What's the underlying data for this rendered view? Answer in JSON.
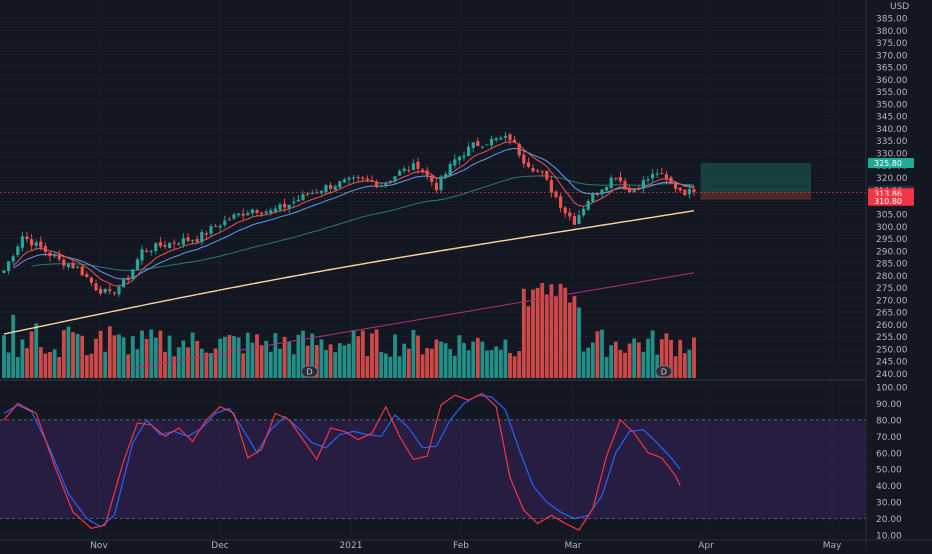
{
  "colors": {
    "background": "#131722",
    "grid": "#2a2e39",
    "up": "#26a69a",
    "down": "#ef5350",
    "ema_fast": "#ef5350",
    "ema_mid": "#5b9cf6",
    "sma_100": "#2a7a73",
    "sma_200": "#ffd59e",
    "sma_purple": "#b0307a",
    "stoch_k": "#2962ff",
    "stoch_d": "#f23645",
    "stoch_band": "#2a1f45",
    "long_profit": "#1a4a48",
    "long_loss": "#5a2a2e",
    "badge_green": "#22ab94",
    "badge_red": "#f23645"
  },
  "currency": "USD",
  "current_price_label": "313.86",
  "countdown_label": "04:45:05",
  "target_label": "325.80",
  "stop_label": "310.80",
  "last_close_label": "314.06",
  "dividend_marker": "D",
  "chart_data": [
    {
      "type": "candlestick",
      "x_labels": [
        "Nov",
        "Dec",
        "2021",
        "Feb",
        "Mar",
        "Apr",
        "May"
      ],
      "y_ticks": [
        "385.00",
        "380.00",
        "375.00",
        "370.00",
        "365.00",
        "360.00",
        "355.00",
        "350.00",
        "345.00",
        "340.00",
        "335.00",
        "330.00",
        "325.00",
        "320.00",
        "315.00",
        "310.00",
        "305.00",
        "300.00",
        "295.00",
        "290.00",
        "285.00",
        "280.00",
        "275.00",
        "270.00",
        "265.00",
        "260.00",
        "255.00",
        "250.00",
        "245.00",
        "240.00"
      ],
      "ylim": [
        240,
        390
      ],
      "close_anchors": [
        [
          0,
          282
        ],
        [
          4,
          296
        ],
        [
          8,
          291
        ],
        [
          12,
          286
        ],
        [
          16,
          283
        ],
        [
          20,
          275
        ],
        [
          23,
          272
        ],
        [
          27,
          279
        ],
        [
          30,
          290
        ],
        [
          34,
          292
        ],
        [
          38,
          294
        ],
        [
          42,
          295
        ],
        [
          46,
          300
        ],
        [
          50,
          304
        ],
        [
          54,
          307
        ],
        [
          58,
          306
        ],
        [
          62,
          309
        ],
        [
          66,
          313
        ],
        [
          70,
          316
        ],
        [
          74,
          318
        ],
        [
          78,
          319
        ],
        [
          82,
          317
        ],
        [
          86,
          322
        ],
        [
          90,
          325
        ],
        [
          94,
          316
        ],
        [
          98,
          327
        ],
        [
          102,
          333
        ],
        [
          106,
          335
        ],
        [
          110,
          336
        ],
        [
          113,
          327
        ],
        [
          117,
          321
        ],
        [
          120,
          312
        ],
        [
          122,
          306
        ],
        [
          124,
          302
        ],
        [
          127,
          311
        ],
        [
          130,
          316
        ],
        [
          133,
          321
        ],
        [
          136,
          314
        ],
        [
          139,
          318
        ],
        [
          142,
          322
        ],
        [
          145,
          317
        ],
        [
          148,
          314
        ],
        [
          150,
          313.86
        ]
      ],
      "volume_range": [
        0.1,
        1.0
      ],
      "position": {
        "entry": 313.86,
        "target": 325.8,
        "stop": 310.8
      },
      "series": [
        {
          "name": "EMA fast"
        },
        {
          "name": "EMA mid"
        },
        {
          "name": "SMA 100"
        },
        {
          "name": "SMA 200"
        }
      ]
    },
    {
      "type": "line",
      "y_ticks": [
        "100.00",
        "90.00",
        "80.00",
        "70.00",
        "60.00",
        "50.00",
        "40.00",
        "30.00",
        "20.00",
        "10.00"
      ],
      "ylim": [
        10,
        100
      ],
      "band": [
        20,
        80
      ],
      "k_anchors": [
        [
          0,
          84
        ],
        [
          3,
          89
        ],
        [
          6,
          85
        ],
        [
          10,
          62
        ],
        [
          14,
          35
        ],
        [
          18,
          20
        ],
        [
          21,
          15
        ],
        [
          24,
          22
        ],
        [
          28,
          66
        ],
        [
          31,
          80
        ],
        [
          34,
          71
        ],
        [
          37,
          73
        ],
        [
          40,
          70
        ],
        [
          43,
          75
        ],
        [
          46,
          84
        ],
        [
          49,
          87
        ],
        [
          52,
          74
        ],
        [
          55,
          60
        ],
        [
          58,
          74
        ],
        [
          61,
          82
        ],
        [
          64,
          75
        ],
        [
          67,
          66
        ],
        [
          70,
          63
        ],
        [
          73,
          71
        ],
        [
          76,
          73
        ],
        [
          79,
          71
        ],
        [
          82,
          70
        ],
        [
          85,
          83
        ],
        [
          88,
          75
        ],
        [
          91,
          63
        ],
        [
          94,
          64
        ],
        [
          97,
          80
        ],
        [
          100,
          90
        ],
        [
          103,
          95
        ],
        [
          106,
          94
        ],
        [
          109,
          86
        ],
        [
          112,
          62
        ],
        [
          115,
          40
        ],
        [
          118,
          30
        ],
        [
          121,
          24
        ],
        [
          124,
          20
        ],
        [
          127,
          22
        ],
        [
          130,
          34
        ],
        [
          133,
          60
        ],
        [
          136,
          73
        ],
        [
          139,
          74
        ],
        [
          142,
          66
        ],
        [
          145,
          57
        ],
        [
          147,
          50
        ]
      ],
      "d_anchors": [
        [
          0,
          80
        ],
        [
          3,
          90
        ],
        [
          7,
          84
        ],
        [
          11,
          52
        ],
        [
          15,
          24
        ],
        [
          19,
          14
        ],
        [
          22,
          16
        ],
        [
          26,
          55
        ],
        [
          29,
          78
        ],
        [
          32,
          77
        ],
        [
          35,
          70
        ],
        [
          38,
          75
        ],
        [
          41,
          67
        ],
        [
          44,
          80
        ],
        [
          47,
          88
        ],
        [
          50,
          84
        ],
        [
          53,
          57
        ],
        [
          56,
          62
        ],
        [
          59,
          84
        ],
        [
          62,
          80
        ],
        [
          65,
          68
        ],
        [
          68,
          56
        ],
        [
          71,
          75
        ],
        [
          74,
          73
        ],
        [
          77,
          68
        ],
        [
          80,
          72
        ],
        [
          83,
          88
        ],
        [
          86,
          70
        ],
        [
          89,
          56
        ],
        [
          92,
          58
        ],
        [
          95,
          89
        ],
        [
          98,
          95
        ],
        [
          101,
          92
        ],
        [
          104,
          96
        ],
        [
          107,
          88
        ],
        [
          110,
          45
        ],
        [
          113,
          25
        ],
        [
          116,
          17
        ],
        [
          119,
          22
        ],
        [
          122,
          17
        ],
        [
          125,
          13
        ],
        [
          128,
          26
        ],
        [
          131,
          58
        ],
        [
          134,
          80
        ],
        [
          137,
          72
        ],
        [
          140,
          60
        ],
        [
          143,
          57
        ],
        [
          146,
          46
        ],
        [
          147,
          40
        ]
      ]
    }
  ]
}
